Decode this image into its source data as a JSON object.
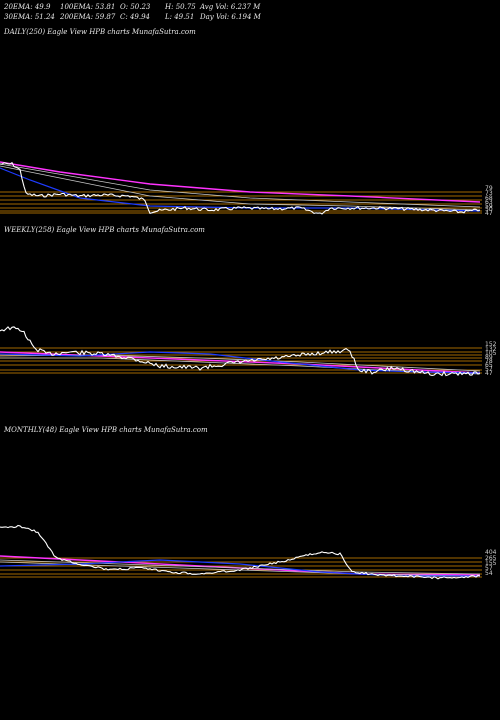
{
  "header": {
    "row1": [
      "20EMA: 49.9",
      "100EMA: 53.81",
      "O: 50.23",
      "H: 50.75",
      "Avg Vol: 6.237  M"
    ],
    "row2": [
      "30EMA: 51.24",
      "200EMA: 59.87",
      "C: 49.94",
      "L: 49.51",
      "Day Vol: 6.194  M"
    ]
  },
  "colors": {
    "background": "#000000",
    "price": "#ffffff",
    "ema_short": "#1e3cff",
    "ema_mid": "#ff33ff",
    "ema_long": "#c8c8c8",
    "levels": "#d98a00"
  },
  "chart_data": [
    {
      "type": "line",
      "title": "DAILY(250) Eagle  View  HPB charts MunafaSutra.com",
      "price_labels": [
        "79",
        "73",
        "68",
        "63",
        "59",
        "50",
        "47"
      ],
      "grid": false,
      "series": []
    },
    {
      "type": "line",
      "title": "WEEKLY(258) Eagle  View  HPB charts MunafaSutra.com",
      "price_labels": [
        "152",
        "132",
        "105",
        "89",
        "78",
        "65",
        "57",
        "47"
      ],
      "grid": false,
      "series": []
    },
    {
      "type": "line",
      "title": "MONTHLY(48) Eagle  View  HPB charts MunafaSutra.com",
      "price_labels": [
        "404",
        "265",
        "155",
        "57",
        "54"
      ],
      "grid": false,
      "series": []
    }
  ]
}
